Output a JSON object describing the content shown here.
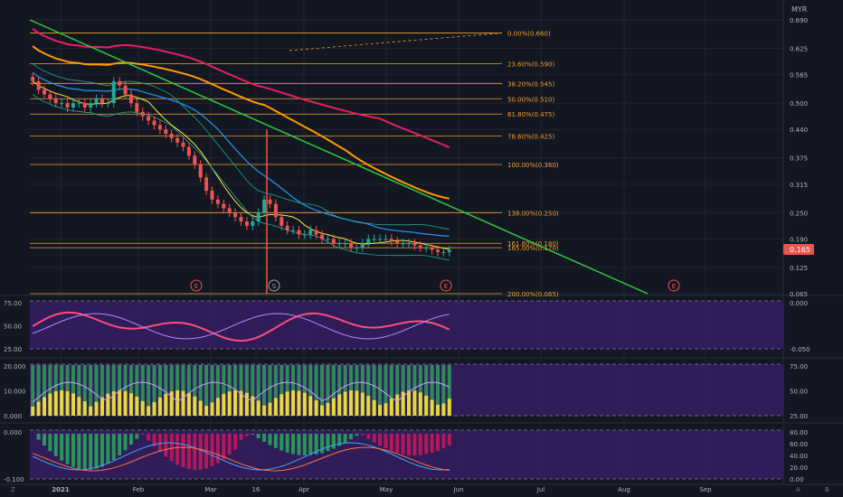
{
  "colors": {
    "background": "#131722",
    "grid": "#1f2430",
    "fib_line": "#f0a030",
    "fib_text": "#f0a030",
    "trendline": "#2ecc40",
    "up_candle": "#26a69a",
    "down_candle": "#ef5350",
    "ma_red": "#e91e63",
    "ma_orange": "#ff9800",
    "ma_blue": "#2196f3",
    "ma_yellow": "#ffeb3b",
    "band_teal": "#26a69a",
    "panel_purple": "#3b1f6b",
    "price_badge": "#ef5350",
    "axis_text": "#b2b5be"
  },
  "chart_data": [
    {
      "type": "candlestick",
      "currency": "MYR",
      "y_ticks": [
        "0.690",
        "0.625",
        "0.565",
        "0.500",
        "0.440",
        "0.375",
        "0.315",
        "0.250",
        "0.190",
        "0.125",
        "0.065"
      ],
      "ylim": [
        0.065,
        0.69
      ],
      "x_ticks": [
        "2021",
        "Feb",
        "Mar",
        "16",
        "Apr",
        "May",
        "Jun",
        "Jul",
        "Aug",
        "Sep"
      ],
      "last_price": "0.165",
      "fib_levels": [
        {
          "label": "0.00%(0.660)",
          "value": 0.66
        },
        {
          "label": "23.60%(0.590)",
          "value": 0.59
        },
        {
          "label": "38.20%(0.545)",
          "value": 0.545
        },
        {
          "label": "50.00%(0.510)",
          "value": 0.51
        },
        {
          "label": "61.80%(0.475)",
          "value": 0.475
        },
        {
          "label": "78.60%(0.425)",
          "value": 0.425
        },
        {
          "label": "100.00%(0.360)",
          "value": 0.36
        },
        {
          "label": "138.00%(0.250)",
          "value": 0.25
        },
        {
          "label": "161.80%(0.180)",
          "value": 0.18
        },
        {
          "label": "165.00%(0.170)",
          "value": 0.17
        },
        {
          "label": "200.00%(0.065)",
          "value": 0.065
        }
      ],
      "events": [
        "E",
        "E",
        "S",
        "E",
        "E"
      ],
      "closes": [
        0.55,
        0.53,
        0.52,
        0.51,
        0.5,
        0.5,
        0.49,
        0.5,
        0.5,
        0.49,
        0.5,
        0.51,
        0.5,
        0.5,
        0.55,
        0.54,
        0.52,
        0.5,
        0.48,
        0.47,
        0.46,
        0.45,
        0.44,
        0.43,
        0.42,
        0.41,
        0.4,
        0.38,
        0.36,
        0.33,
        0.3,
        0.28,
        0.27,
        0.26,
        0.25,
        0.24,
        0.23,
        0.22,
        0.23,
        0.25,
        0.28,
        0.27,
        0.24,
        0.22,
        0.21,
        0.21,
        0.2,
        0.2,
        0.21,
        0.2,
        0.19,
        0.19,
        0.18,
        0.18,
        0.18,
        0.17,
        0.17,
        0.18,
        0.19,
        0.19,
        0.19,
        0.19,
        0.185,
        0.18,
        0.18,
        0.18,
        0.175,
        0.17,
        0.17,
        0.165,
        0.16,
        0.16,
        0.165
      ]
    },
    {
      "type": "line",
      "panel": "stochastic",
      "y_ticks": [
        "75.00",
        "50.00",
        "25.00"
      ],
      "right_ticks": [
        "0.000",
        "-0.050"
      ]
    },
    {
      "type": "bar",
      "panel": "volume",
      "y_ticks": [
        "20.000",
        "10.000",
        "0.000"
      ],
      "right_ticks": [
        "75.00",
        "50.00",
        "25.00"
      ]
    },
    {
      "type": "bar",
      "panel": "macd",
      "y_ticks": [
        "0.000",
        "-0.100"
      ],
      "right_ticks": [
        "80.00",
        "60.00",
        "40.00",
        "20.00",
        "0.00"
      ]
    }
  ],
  "corner_labels": {
    "left": "Z",
    "a": "A",
    "b": "B"
  }
}
